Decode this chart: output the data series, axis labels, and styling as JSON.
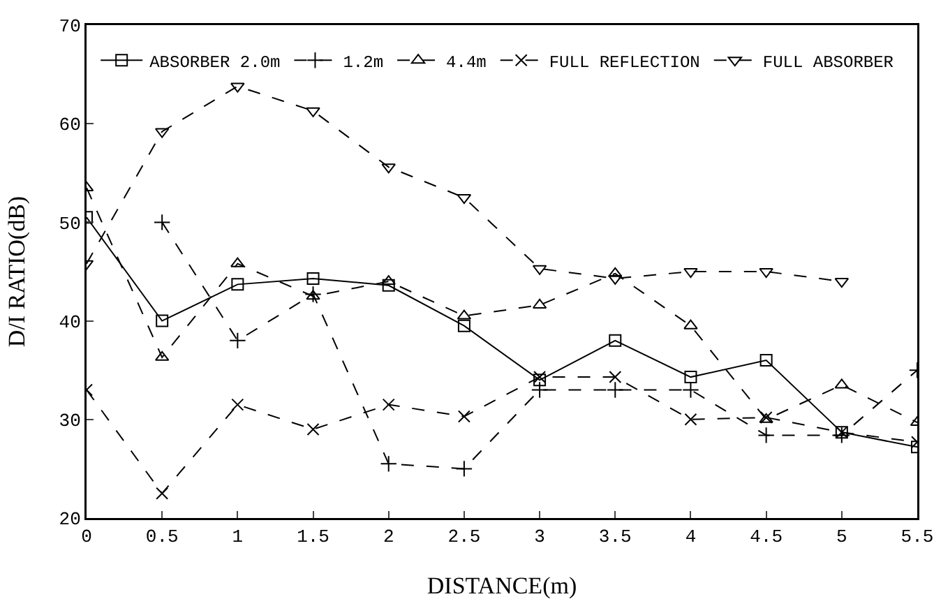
{
  "chart_data": {
    "type": "line",
    "xlabel": "DISTANCE(m)",
    "ylabel": "D/I RATIO(dB)",
    "x": [
      0,
      0.5,
      1,
      1.5,
      2,
      2.5,
      3,
      3.5,
      4,
      4.5,
      5,
      5.5
    ],
    "xlim": [
      0,
      5.5
    ],
    "xticks": [
      0,
      0.5,
      1,
      1.5,
      2,
      2.5,
      3,
      3.5,
      4,
      4.5,
      5,
      5.5
    ],
    "ylim": [
      20,
      70
    ],
    "yticks": [
      20,
      30,
      40,
      50,
      60,
      70
    ],
    "grid": false,
    "legend": "top right",
    "series": [
      {
        "name": "ABSORBER 2.0m",
        "color": "#000000",
        "marker": "square",
        "line_style": "solid",
        "values": [
          50.5,
          40,
          43.7,
          44.3,
          43.6,
          39.5,
          34,
          38,
          34.3,
          36,
          28.7,
          27.2
        ]
      },
      {
        "name": "1.2m",
        "color": "#000000",
        "marker": "cross",
        "line_style": "dashed",
        "values": [
          null,
          50,
          38,
          42.7,
          25.5,
          25,
          33,
          33,
          33,
          28.4,
          28.4,
          35
        ]
      },
      {
        "name": "4.4m",
        "color": "#000000",
        "marker": "triangle",
        "line_style": "dashed",
        "values": [
          53.5,
          36.3,
          45.8,
          42.5,
          44,
          40.5,
          41.6,
          44.8,
          39.5,
          30,
          33.5,
          29.7
        ]
      },
      {
        "name": "FULL REFLECTION",
        "color": "#000000",
        "marker": "x",
        "line_style": "dashed",
        "values": [
          33,
          22.5,
          31.5,
          29,
          31.5,
          30.3,
          34.3,
          34.3,
          30,
          30.2,
          28.7,
          27.7
        ]
      },
      {
        "name": "FULL ABSORBER",
        "color": "#000000",
        "marker": "triangle-down",
        "line_style": "dashed",
        "values": [
          45.8,
          59.2,
          63.8,
          61.3,
          55.6,
          52.5,
          45.3,
          44.3,
          45,
          45,
          44,
          null
        ]
      }
    ]
  }
}
